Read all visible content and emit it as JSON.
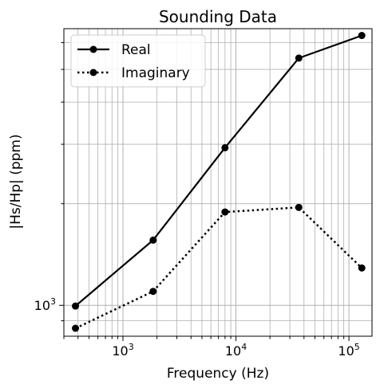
{
  "chart_data": {
    "type": "line",
    "title": "Sounding Data",
    "xlabel": "Frequency (Hz)",
    "ylabel": "|Hs/Hp| (ppm)",
    "xscale": "log",
    "yscale": "log",
    "xlim": [
      300,
      160000
    ],
    "ylim": [
      810,
      6600
    ],
    "grid": true,
    "legend_position": "top-left",
    "x_tick_labels": [
      {
        "value": 1000,
        "base": "10",
        "exp": "3"
      },
      {
        "value": 10000,
        "base": "10",
        "exp": "4"
      },
      {
        "value": 100000,
        "base": "10",
        "exp": "5"
      }
    ],
    "y_tick_labels": [
      {
        "value": 1000,
        "base": "10",
        "exp": "3"
      }
    ],
    "x": [
      380,
      1850,
      8000,
      36000,
      130000
    ],
    "series": [
      {
        "name": "Real",
        "values": [
          995,
          1560,
          2930,
          5400,
          6300
        ],
        "color": "#000000",
        "linestyle": "solid",
        "marker": "circle"
      },
      {
        "name": "Imaginary",
        "values": [
          855,
          1100,
          1890,
          1950,
          1290
        ],
        "color": "#000000",
        "linestyle": "dotted",
        "marker": "circle"
      }
    ]
  }
}
